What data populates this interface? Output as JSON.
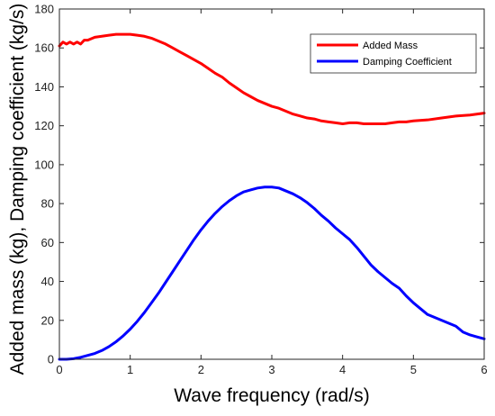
{
  "chart_data": {
    "type": "line",
    "title": "",
    "xlabel": "Wave frequency (rad/s)",
    "ylabel": "Added mass (kg), Damping coefficient (kg/s)",
    "xlim": [
      0,
      6
    ],
    "ylim": [
      0,
      180
    ],
    "xticks": [
      0,
      1,
      2,
      3,
      4,
      5,
      6
    ],
    "yticks": [
      0,
      20,
      40,
      60,
      80,
      100,
      120,
      140,
      160,
      180
    ],
    "grid": false,
    "legend_position": "top-right",
    "series": [
      {
        "name": "Added Mass",
        "color": "#ff0000",
        "x": [
          0.0,
          0.05,
          0.1,
          0.15,
          0.2,
          0.25,
          0.3,
          0.35,
          0.4,
          0.5,
          0.6,
          0.7,
          0.8,
          0.9,
          1.0,
          1.1,
          1.2,
          1.3,
          1.4,
          1.5,
          1.6,
          1.7,
          1.8,
          1.9,
          2.0,
          2.1,
          2.2,
          2.3,
          2.4,
          2.5,
          2.6,
          2.7,
          2.8,
          2.9,
          3.0,
          3.1,
          3.2,
          3.3,
          3.4,
          3.5,
          3.6,
          3.7,
          3.8,
          3.9,
          4.0,
          4.1,
          4.2,
          4.3,
          4.4,
          4.5,
          4.6,
          4.7,
          4.8,
          4.9,
          5.0,
          5.2,
          5.4,
          5.6,
          5.8,
          6.0
        ],
        "y": [
          161,
          163,
          162,
          163,
          162,
          163,
          162,
          164,
          164,
          165.5,
          166,
          166.5,
          167,
          167,
          167,
          166.5,
          166,
          165,
          163.5,
          162,
          160,
          158,
          156,
          154,
          152,
          149.5,
          147,
          145,
          142,
          139.5,
          137,
          135,
          133,
          131.5,
          130,
          129,
          127.5,
          126,
          125,
          124,
          123.5,
          122.5,
          122,
          121.5,
          121,
          121.5,
          121.5,
          121,
          121,
          121,
          121,
          121.5,
          122,
          122,
          122.5,
          123,
          124,
          125,
          125.5,
          126.5
        ]
      },
      {
        "name": "Damping Coefficient",
        "color": "#0000ff",
        "x": [
          0.0,
          0.1,
          0.2,
          0.3,
          0.4,
          0.5,
          0.6,
          0.7,
          0.8,
          0.9,
          1.0,
          1.1,
          1.2,
          1.3,
          1.4,
          1.5,
          1.6,
          1.7,
          1.8,
          1.9,
          2.0,
          2.1,
          2.2,
          2.3,
          2.4,
          2.5,
          2.6,
          2.7,
          2.8,
          2.9,
          3.0,
          3.1,
          3.2,
          3.3,
          3.4,
          3.5,
          3.6,
          3.7,
          3.8,
          3.9,
          4.0,
          4.1,
          4.2,
          4.3,
          4.4,
          4.5,
          4.6,
          4.7,
          4.8,
          4.9,
          5.0,
          5.1,
          5.2,
          5.3,
          5.4,
          5.5,
          5.6,
          5.7,
          5.8,
          5.9,
          6.0
        ],
        "y": [
          0,
          0,
          0.3,
          1,
          2,
          3,
          4.5,
          6.5,
          9,
          12,
          15.5,
          19.5,
          24,
          29,
          34,
          39.5,
          45,
          50.5,
          56,
          61.5,
          66.5,
          71,
          75,
          78.5,
          81.5,
          84,
          86,
          87,
          88,
          88.5,
          88.5,
          88,
          86.5,
          85,
          83,
          80.5,
          77.5,
          74,
          71,
          67.5,
          64.5,
          61.5,
          57.5,
          53,
          48.5,
          45,
          42,
          39,
          36.5,
          32.5,
          29,
          26,
          23,
          21.5,
          20,
          18.5,
          17,
          14,
          12.5,
          11.5,
          10.5
        ]
      }
    ]
  }
}
